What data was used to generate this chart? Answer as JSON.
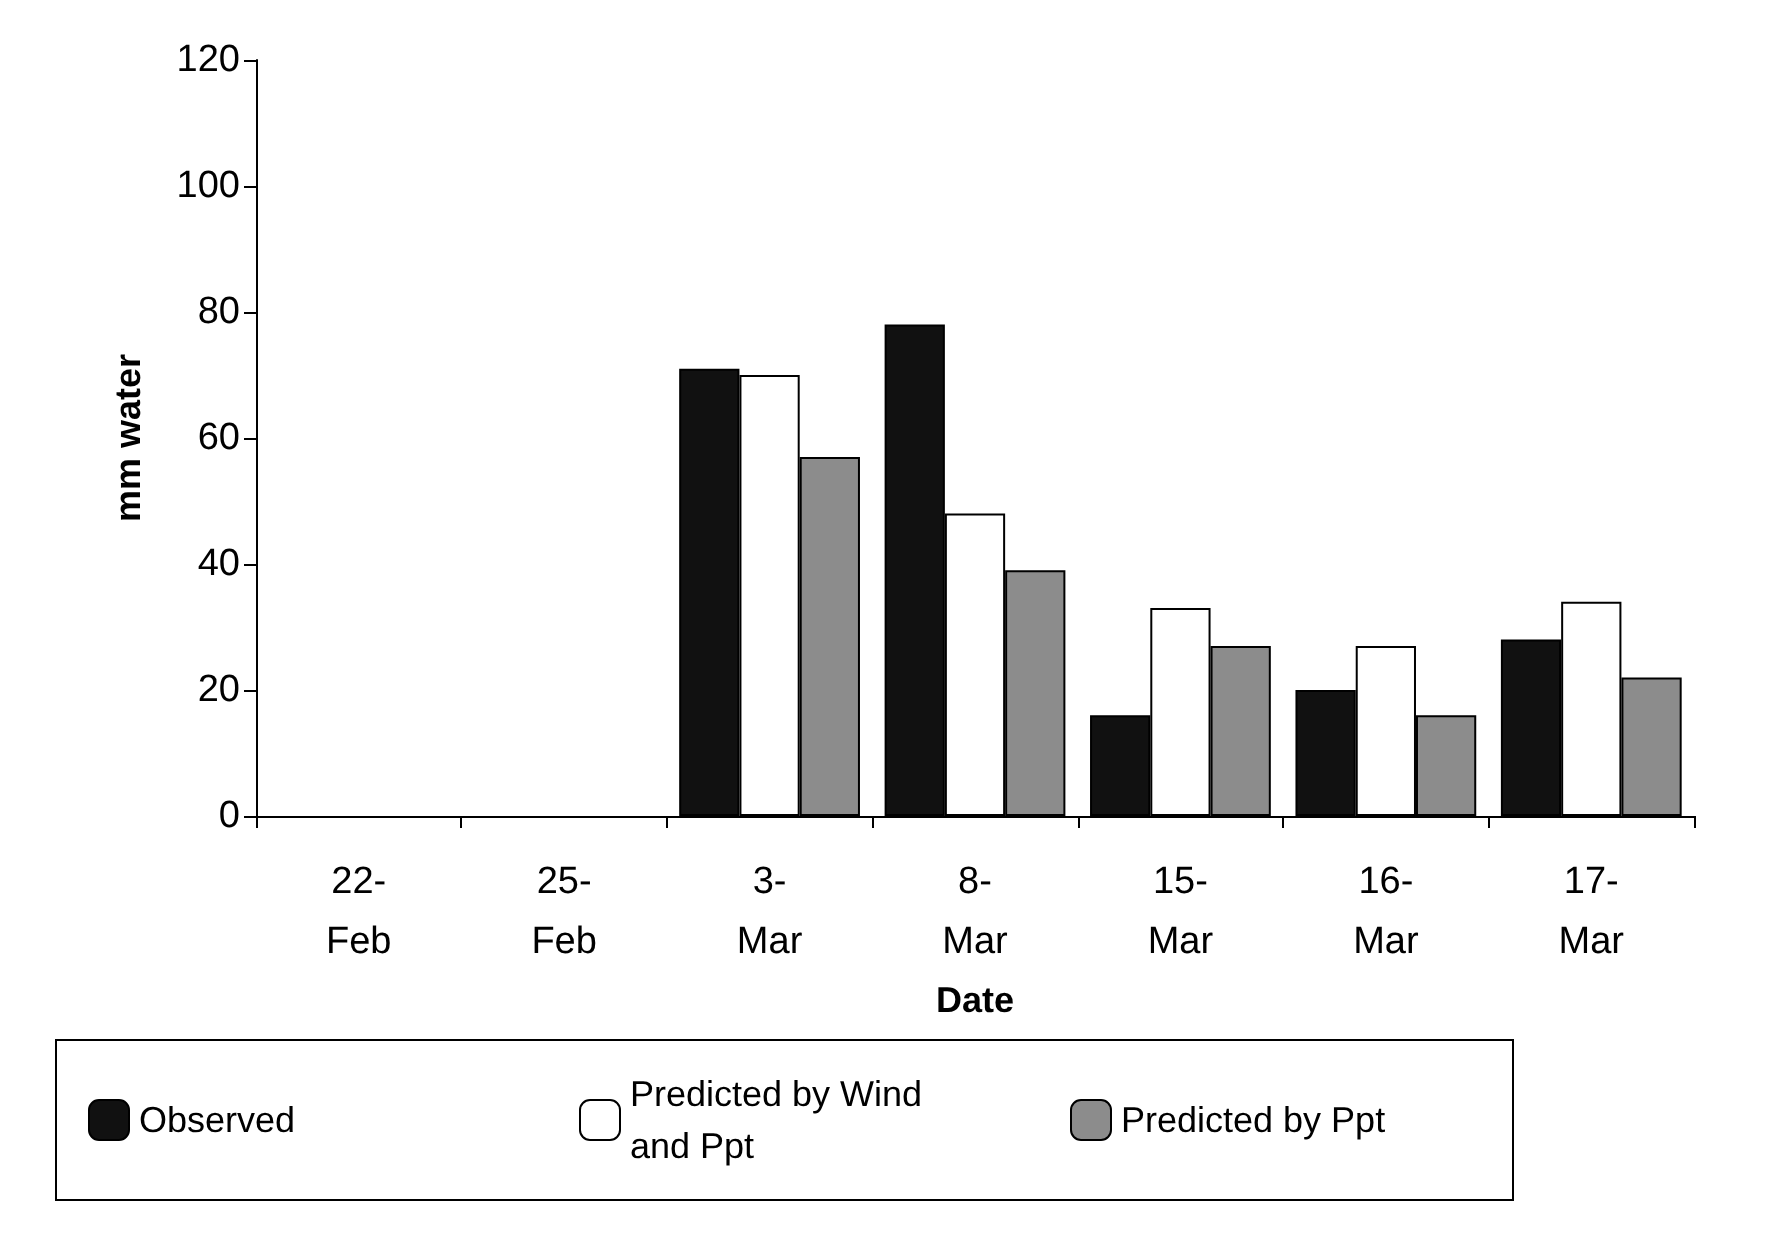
{
  "chart_data": {
    "type": "bar",
    "xlabel": "Date",
    "ylabel": "mm water",
    "categories": [
      "22-Feb",
      "25-Feb",
      "3-Mar",
      "8-Mar",
      "15-Mar",
      "16-Mar",
      "17-Mar"
    ],
    "series": [
      {
        "name": "Observed",
        "color": "#111111",
        "values": [
          null,
          null,
          71,
          78,
          16,
          20,
          28
        ]
      },
      {
        "name": "Predicted by Wind and Ppt",
        "color": "#ffffff",
        "values": [
          null,
          null,
          70,
          48,
          33,
          27,
          34
        ]
      },
      {
        "name": "Predicted by Ppt",
        "color": "#8c8c8c",
        "values": [
          null,
          null,
          57,
          39,
          27,
          16,
          22
        ]
      }
    ],
    "ylim": [
      0,
      120
    ],
    "yticks": [
      0,
      20,
      40,
      60,
      80,
      100,
      120
    ],
    "grid": false,
    "legend": "bottom"
  }
}
